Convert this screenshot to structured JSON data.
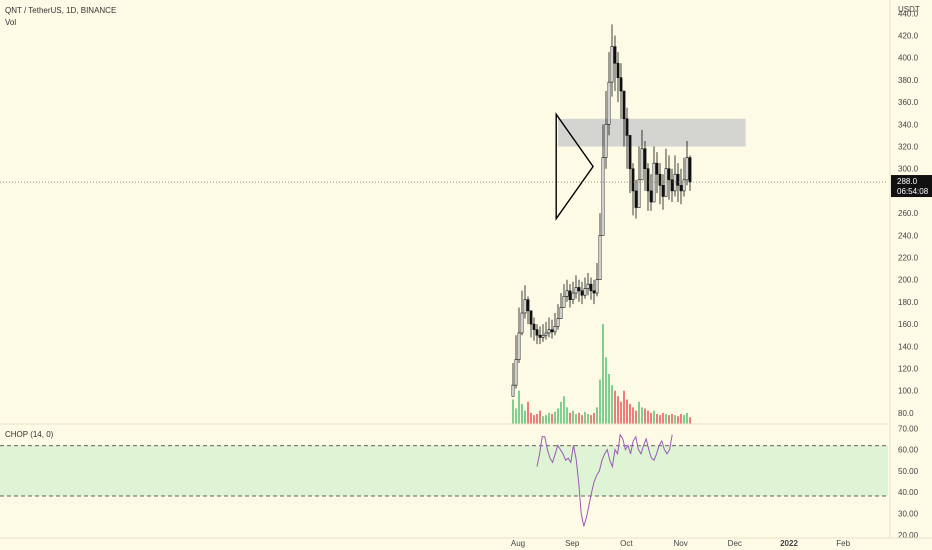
{
  "header": {
    "symbol": "QNT / TetherUS, 1D, BINANCE",
    "volume_label": "Vol",
    "currency_label": "USDT"
  },
  "colors": {
    "background": "#fdfbe6",
    "up_candle": "#ffffff",
    "candle_outline": "#111111",
    "volume_up": "#7fcf8f",
    "volume_down": "#ef7b7b",
    "resistance_zone": "#d4d4d0",
    "chop_band": "#dff3d5",
    "chop_line": "#9b59b6",
    "price_tag": "#111111"
  },
  "chart_data": [
    {
      "type": "candlestick",
      "title": "QNT / TetherUS, 1D, BINANCE",
      "x_ticks": [
        "Aug",
        "Sep",
        "Oct",
        "Nov",
        "Dec",
        "2022",
        "Feb"
      ],
      "y_ticks": [
        80,
        100,
        120,
        140,
        160,
        180,
        200,
        220,
        240,
        260,
        280,
        300,
        320,
        340,
        360,
        380,
        400,
        420,
        440
      ],
      "ylim": [
        70,
        452
      ],
      "current_price": "288.0",
      "countdown": "06:54:08",
      "approx_series": {
        "start_month_index": 0.0,
        "close": [
          105,
          128,
          152,
          170,
          182,
          172,
          160,
          155,
          150,
          148,
          150,
          152,
          155,
          153,
          158,
          165,
          175,
          185,
          190,
          182,
          188,
          193,
          190,
          186,
          192,
          196,
          190,
          188,
          200,
          240,
          310,
          340,
          378,
          410,
          395,
          382,
          370,
          345,
          330,
          300,
          280,
          265,
          290,
          318,
          300,
          280,
          270,
          305,
          295,
          285,
          275,
          300,
          290,
          280,
          295,
          285,
          280,
          290,
          310,
          288
        ],
        "high": [
          125,
          150,
          175,
          190,
          195,
          185,
          172,
          166,
          160,
          158,
          160,
          162,
          166,
          164,
          170,
          178,
          188,
          196,
          200,
          196,
          198,
          204,
          200,
          198,
          202,
          206,
          202,
          200,
          215,
          260,
          340,
          370,
          405,
          430,
          420,
          405,
          395,
          370,
          355,
          325,
          305,
          290,
          320,
          335,
          325,
          305,
          295,
          320,
          315,
          305,
          295,
          318,
          312,
          300,
          312,
          305,
          300,
          310,
          325,
          312
        ],
        "low": [
          95,
          102,
          125,
          150,
          165,
          160,
          148,
          145,
          142,
          142,
          144,
          146,
          148,
          147,
          150,
          155,
          165,
          175,
          180,
          175,
          178,
          183,
          180,
          178,
          183,
          186,
          182,
          178,
          185,
          200,
          240,
          300,
          330,
          365,
          370,
          360,
          345,
          320,
          300,
          278,
          258,
          255,
          275,
          295,
          280,
          262,
          262,
          280,
          278,
          268,
          263,
          275,
          272,
          270,
          275,
          270,
          268,
          275,
          285,
          280
        ]
      },
      "volume": [
        22,
        14,
        30,
        18,
        12,
        20,
        10,
        8,
        9,
        12,
        7,
        8,
        10,
        9,
        11,
        14,
        20,
        25,
        15,
        10,
        12,
        9,
        10,
        8,
        11,
        9,
        8,
        10,
        15,
        40,
        90,
        60,
        45,
        35,
        30,
        25,
        20,
        30,
        22,
        18,
        15,
        12,
        20,
        15,
        14,
        12,
        10,
        12,
        9,
        8,
        10,
        9,
        8,
        9,
        8,
        7,
        9,
        8,
        10,
        6
      ],
      "triangle": {
        "top_start": [
          0.705,
          349
        ],
        "bottom_start": [
          0.705,
          255
        ],
        "apex": [
          1.385,
          302
        ]
      },
      "resistance_zone": {
        "x_from": 0.74,
        "x_to": 4.2,
        "y_from": 320,
        "y_to": 345
      }
    },
    {
      "type": "line",
      "title": "CHOP (14, 0)",
      "y_ticks": [
        20,
        30,
        40,
        50,
        60,
        70
      ],
      "ylim": [
        18.5,
        72
      ],
      "upper_band": 61.8,
      "lower_band": 38.2,
      "values": [
        52,
        58,
        66,
        66,
        60,
        56,
        54,
        58,
        62,
        60,
        58,
        55,
        56,
        54,
        62,
        56,
        45,
        30,
        24,
        28,
        34,
        40,
        45,
        48,
        50,
        55,
        58,
        60,
        55,
        52,
        60,
        58,
        67,
        65,
        60,
        62,
        58,
        64,
        66,
        60,
        58,
        62,
        65,
        60,
        56,
        55,
        58,
        62,
        64,
        60,
        58,
        60,
        67
      ]
    }
  ],
  "labels": {
    "price_tag": "288.0",
    "countdown_tag": "06:54:08"
  }
}
